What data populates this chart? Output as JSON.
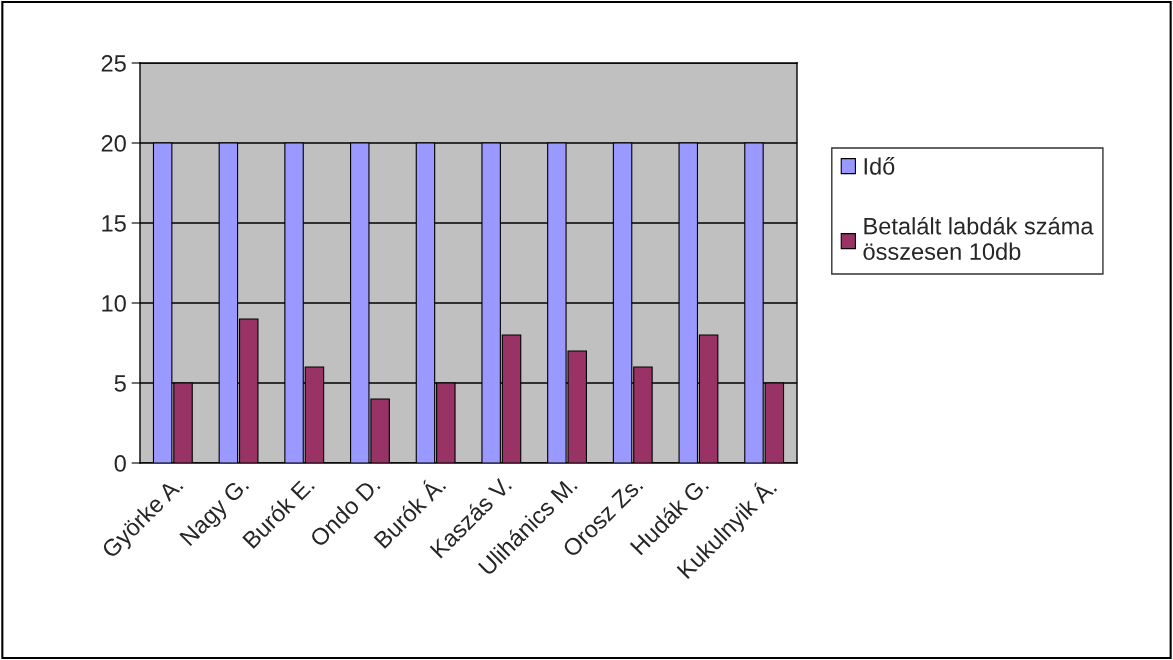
{
  "chart_data": {
    "type": "bar",
    "categories": [
      "Györke A.",
      "Nagy G.",
      "Burók E.",
      "Ondo D.",
      "Burók Á.",
      "Kaszás V.",
      "Ulihánics M.",
      "Orosz Zs.",
      "Hudák G.",
      "Kukulnyik Á."
    ],
    "series": [
      {
        "name": "Idő",
        "color": "#9999ff",
        "values": [
          20,
          20,
          20,
          20,
          20,
          20,
          20,
          20,
          20,
          20
        ]
      },
      {
        "name": "Betalált labdák száma összesen 10db",
        "color": "#993366",
        "values": [
          5,
          9,
          6,
          4,
          5,
          8,
          7,
          6,
          8,
          5
        ]
      }
    ],
    "ylim": [
      0,
      25
    ],
    "yticks": [
      0,
      5,
      10,
      15,
      20,
      25
    ],
    "grid": "y",
    "legend": "right"
  }
}
